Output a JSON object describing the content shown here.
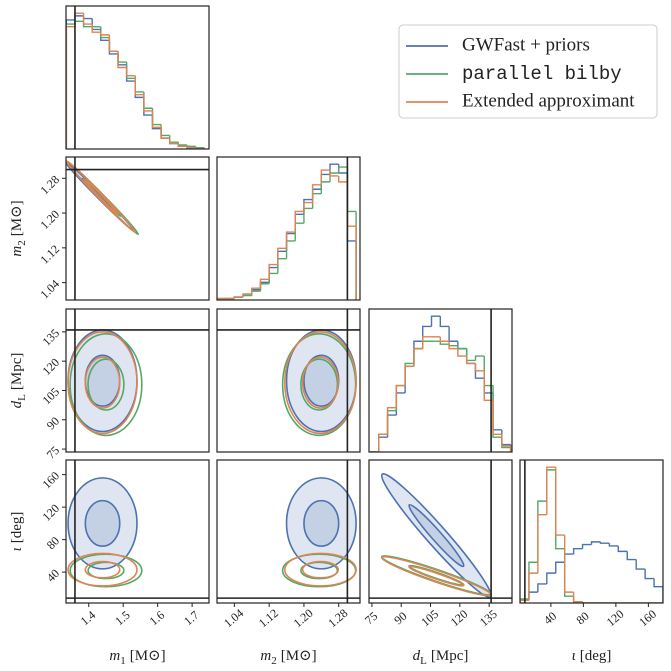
{
  "chart_data": {
    "type": "corner",
    "legend": "upper right",
    "levels": [
      1,
      2
    ],
    "series": [
      {
        "name": "GWFast + priors",
        "color": "#4c72b0",
        "filled": true
      },
      {
        "name": "parallel bilby",
        "color": "#55a868",
        "font": "mono"
      },
      {
        "name": "Extended approximant",
        "color": "#dd8452"
      }
    ],
    "params": [
      {
        "symbol": "m",
        "sub": "1",
        "unit": "[M⊙]",
        "lim": [
          1.334,
          1.749
        ],
        "ticks": [
          1.4,
          1.5,
          1.6,
          1.7
        ],
        "truth": 1.36,
        "bins": [
          1.335,
          1.36,
          1.385,
          1.41,
          1.435,
          1.46,
          1.485,
          1.51,
          1.535,
          1.56,
          1.585,
          1.61,
          1.635,
          1.66,
          1.685,
          1.71,
          1.735
        ],
        "hist": [
          [
            95,
            98,
            96,
            88,
            80,
            70,
            62,
            50,
            38,
            25,
            15,
            8,
            4,
            2,
            1,
            0
          ],
          [
            92,
            94,
            90,
            90,
            82,
            72,
            64,
            52,
            42,
            30,
            18,
            10,
            5,
            3,
            2,
            1
          ],
          [
            90,
            100,
            92,
            86,
            84,
            72,
            60,
            54,
            40,
            28,
            16,
            8,
            4,
            2,
            1,
            0
          ]
        ]
      },
      {
        "symbol": "m",
        "sub": "2",
        "unit": "[M⊙]",
        "lim": [
          1.0,
          1.329
        ],
        "ticks": [
          1.04,
          1.12,
          {
            "value": 1.2,
            "label": "1.20"
          },
          1.28
        ],
        "truth": 1.3,
        "bins": [
          1.0,
          1.02,
          1.04,
          1.06,
          1.08,
          1.1,
          1.12,
          1.14,
          1.16,
          1.18,
          1.2,
          1.22,
          1.24,
          1.26,
          1.28,
          1.3,
          1.32
        ],
        "hist": [
          [
            1,
            1,
            2,
            4,
            7,
            12,
            22,
            33,
            45,
            58,
            68,
            75,
            85,
            92,
            86,
            40
          ],
          [
            1,
            1,
            2,
            3,
            6,
            11,
            18,
            28,
            40,
            52,
            62,
            72,
            80,
            86,
            90,
            60
          ],
          [
            1,
            1,
            2,
            4,
            8,
            14,
            24,
            35,
            46,
            60,
            66,
            78,
            88,
            84,
            80,
            50
          ]
        ]
      },
      {
        "symbol": "d",
        "sub": "L",
        "unit": "[Mpc]",
        "lim": [
          73.5,
          146.7
        ],
        "ticks": [
          75,
          90,
          105,
          120,
          135
        ],
        "truth": 136,
        "bins": [
          74,
          78.5,
          83,
          87.5,
          92,
          96.5,
          101,
          105.5,
          110,
          114.5,
          119,
          123.5,
          128,
          132.5,
          137,
          141.5,
          146
        ],
        "hist": [
          [
            0,
            10,
            25,
            40,
            58,
            75,
            85,
            92,
            85,
            75,
            70,
            60,
            50,
            40,
            15,
            5
          ],
          [
            0,
            12,
            28,
            45,
            60,
            70,
            75,
            75,
            73,
            72,
            70,
            62,
            65,
            45,
            10,
            3
          ],
          [
            0,
            12,
            30,
            45,
            58,
            70,
            78,
            78,
            75,
            70,
            65,
            60,
            55,
            35,
            12,
            4
          ]
        ]
      },
      {
        "symbol": "ι",
        "unit": "[deg]",
        "lim": [
          2,
          178
        ],
        "ticks": [
          40,
          80,
          120,
          160
        ],
        "truth": 8,
        "bins": [
          2,
          13,
          24,
          35,
          46,
          57,
          68,
          79,
          90,
          101,
          112,
          123,
          134,
          145,
          156,
          167,
          178
        ],
        "hist": [
          [
            2,
            8,
            14,
            22,
            30,
            36,
            40,
            43,
            45,
            44,
            42,
            38,
            32,
            25,
            18,
            12
          ],
          [
            3,
            30,
            75,
            98,
            40,
            5,
            0,
            0,
            0,
            0,
            0,
            0,
            0,
            0,
            0,
            0
          ],
          [
            2,
            22,
            65,
            100,
            50,
            8,
            1,
            0,
            0,
            0,
            0,
            0,
            0,
            0,
            0,
            0
          ]
        ]
      }
    ],
    "pairs": [
      {
        "gaussians": [
          {
            "cx": 1.43,
            "cy": 1.24,
            "sx": 0.05,
            "sy": 0.04,
            "rho": -0.995
          },
          {
            "cx": 1.44,
            "cy": 1.235,
            "sx": 0.052,
            "sy": 0.042,
            "rho": -0.995
          },
          {
            "cx": 1.435,
            "cy": 1.238,
            "sx": 0.05,
            "sy": 0.041,
            "rho": -0.995
          }
        ]
      },
      {
        "gaussians": [
          {
            "cx": 1.44,
            "cy": 110,
            "sx": 0.05,
            "sy": 13,
            "rho": 0
          },
          {
            "cx": 1.45,
            "cy": 108,
            "sx": 0.052,
            "sy": 13,
            "rho": 0
          },
          {
            "cx": 1.44,
            "cy": 109,
            "sx": 0.05,
            "sy": 13,
            "rho": 0
          }
        ]
      },
      {
        "gaussians": [
          {
            "cx": 1.24,
            "cy": 110,
            "sx": 0.04,
            "sy": 13,
            "rho": 0
          },
          {
            "cx": 1.235,
            "cy": 108,
            "sx": 0.042,
            "sy": 13,
            "rho": 0
          },
          {
            "cx": 1.238,
            "cy": 109,
            "sx": 0.041,
            "sy": 13,
            "rho": 0
          }
        ]
      },
      {
        "gaussians": [
          {
            "cx": 1.44,
            "cy": 100,
            "sx": 0.05,
            "sy": 28,
            "rho": 0
          },
          {
            "cx": 1.45,
            "cy": 42,
            "sx": 0.052,
            "sy": 10,
            "rho": 0
          },
          {
            "cx": 1.44,
            "cy": 43,
            "sx": 0.05,
            "sy": 10,
            "rho": 0
          }
        ]
      },
      {
        "gaussians": [
          {
            "cx": 1.24,
            "cy": 100,
            "sx": 0.04,
            "sy": 28,
            "rho": 0
          },
          {
            "cx": 1.235,
            "cy": 42,
            "sx": 0.042,
            "sy": 10,
            "rho": 0
          },
          {
            "cx": 1.238,
            "cy": 43,
            "sx": 0.041,
            "sy": 10,
            "rho": 0
          }
        ]
      },
      {
        "gaussians": [
          {
            "cx": 108,
            "cy": 85,
            "sx": 14,
            "sy": 38,
            "rho": -0.97
          },
          {
            "cx": 108,
            "cy": 36,
            "sx": 14,
            "sy": 12,
            "rho": -0.95
          },
          {
            "cx": 108,
            "cy": 35,
            "sx": 14,
            "sy": 12,
            "rho": -0.95
          }
        ]
      }
    ]
  }
}
